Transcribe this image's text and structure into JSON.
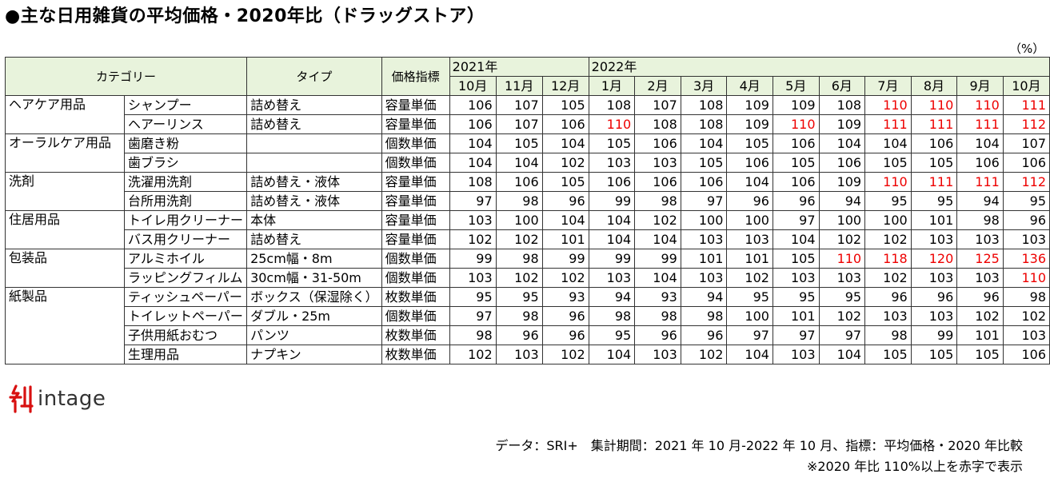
{
  "title": "●主な日用雑貨の平均価格・2020年比（ドラッグストア）",
  "unit": "（%）",
  "header": {
    "category": "カテゴリー",
    "type": "タイプ",
    "index": "価格指標",
    "year1": "2021年",
    "year2": "2022年",
    "months": [
      "10月",
      "11月",
      "12月",
      "1月",
      "2月",
      "3月",
      "4月",
      "5月",
      "6月",
      "7月",
      "8月",
      "9月",
      "10月"
    ]
  },
  "groups": [
    {
      "category": "ヘアケア用品",
      "rows": [
        {
          "product": "シャンプー",
          "type": "詰め替え",
          "index": "容量単価",
          "values": [
            106,
            107,
            105,
            108,
            107,
            108,
            109,
            109,
            108,
            110,
            110,
            110,
            111
          ]
        },
        {
          "product": "ヘアーリンス",
          "type": "詰め替え",
          "index": "容量単価",
          "values": [
            106,
            107,
            106,
            110,
            108,
            108,
            109,
            110,
            109,
            111,
            111,
            111,
            112
          ]
        }
      ]
    },
    {
      "category": "オーラルケア用品",
      "rows": [
        {
          "product": "歯磨き粉",
          "type": "",
          "index": "個数単価",
          "values": [
            104,
            105,
            104,
            105,
            106,
            104,
            105,
            106,
            104,
            104,
            106,
            104,
            107
          ]
        },
        {
          "product": "歯ブラシ",
          "type": "",
          "index": "個数単価",
          "values": [
            104,
            104,
            102,
            103,
            103,
            105,
            106,
            105,
            106,
            105,
            105,
            106,
            106
          ]
        }
      ]
    },
    {
      "category": "洗剤",
      "rows": [
        {
          "product": "洗濯用洗剤",
          "type": "詰め替え・液体",
          "index": "容量単価",
          "values": [
            108,
            106,
            105,
            106,
            106,
            106,
            104,
            106,
            109,
            110,
            111,
            111,
            112
          ]
        },
        {
          "product": "台所用洗剤",
          "type": "詰め替え・液体",
          "index": "容量単価",
          "values": [
            97,
            98,
            96,
            99,
            98,
            97,
            96,
            96,
            94,
            95,
            95,
            94,
            95
          ]
        }
      ]
    },
    {
      "category": "住居用品",
      "rows": [
        {
          "product": "トイレ用クリーナー",
          "type": "本体",
          "index": "容量単価",
          "values": [
            103,
            100,
            104,
            104,
            102,
            100,
            100,
            97,
            100,
            100,
            101,
            98,
            96
          ]
        },
        {
          "product": "バス用クリーナー",
          "type": "詰め替え",
          "index": "容量単価",
          "values": [
            102,
            102,
            101,
            104,
            104,
            103,
            103,
            104,
            102,
            102,
            103,
            103,
            103
          ]
        }
      ]
    },
    {
      "category": "包装品",
      "rows": [
        {
          "product": "アルミホイル",
          "type": "25cm幅・8m",
          "index": "個数単価",
          "values": [
            99,
            98,
            99,
            99,
            99,
            101,
            101,
            105,
            110,
            118,
            120,
            125,
            136
          ]
        },
        {
          "product": "ラッピングフィルム",
          "type": "30cm幅・31-50m",
          "index": "個数単価",
          "values": [
            103,
            102,
            102,
            103,
            104,
            103,
            102,
            103,
            103,
            102,
            103,
            103,
            110
          ]
        }
      ]
    },
    {
      "category": "紙製品",
      "rows": [
        {
          "product": "ティッシュペーパー",
          "type": "ボックス（保湿除く）",
          "index": "枚数単価",
          "values": [
            95,
            95,
            93,
            94,
            93,
            94,
            95,
            95,
            95,
            96,
            96,
            96,
            98
          ]
        },
        {
          "product": "トイレットペーパー",
          "type": "ダブル・25m",
          "index": "個数単価",
          "values": [
            97,
            98,
            96,
            98,
            98,
            98,
            100,
            101,
            102,
            103,
            103,
            102,
            102
          ]
        },
        {
          "product": "子供用紙おむつ",
          "type": "パンツ",
          "index": "枚数単価",
          "values": [
            98,
            96,
            96,
            95,
            96,
            96,
            97,
            97,
            97,
            98,
            99,
            101,
            103
          ]
        },
        {
          "product": "生理用品",
          "type": "ナプキン",
          "index": "枚数単価",
          "values": [
            102,
            103,
            102,
            104,
            103,
            102,
            104,
            103,
            104,
            105,
            105,
            105,
            106
          ]
        }
      ]
    }
  ],
  "highlight_threshold": 110,
  "highlight_color": "#ee0000",
  "header_bg": "#e8f3dc",
  "logo_text": "intage",
  "footer_line1": "データ：SRI+　集計期間：2021 年 10 月-2022 年 10 月、指標：平均価格・2020 年比較",
  "footer_line2": "※2020 年比 110%以上を赤字で表示"
}
